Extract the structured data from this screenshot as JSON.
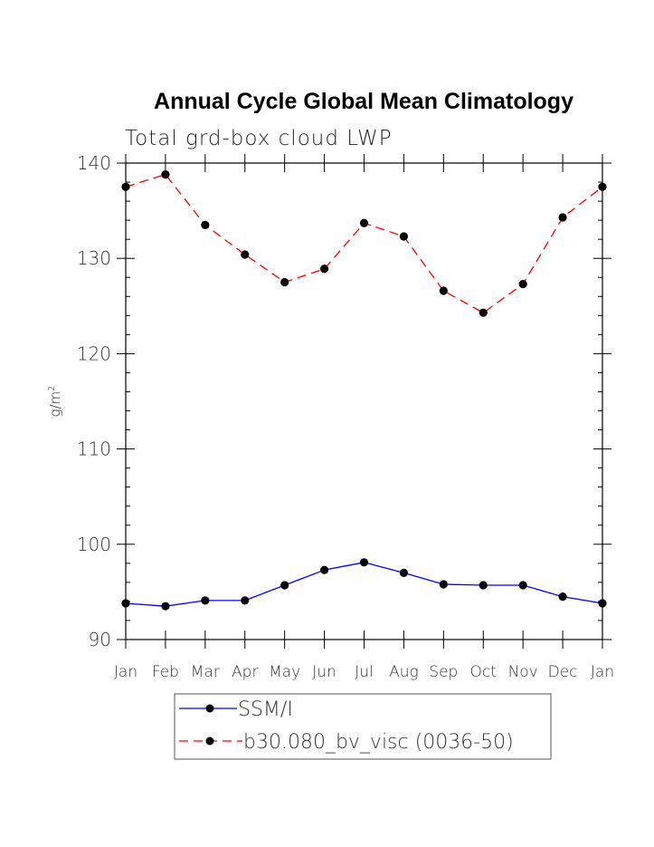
{
  "chart_data": {
    "type": "line",
    "title": "Annual Cycle Global Mean Climatology",
    "subtitle": "Total grd-box cloud LWP",
    "xlabel": "",
    "ylabel": "g/m",
    "ylabel_sup": "2",
    "ylim": [
      90,
      140
    ],
    "yticks": [
      90,
      100,
      110,
      120,
      130,
      140
    ],
    "categories": [
      "Jan",
      "Feb",
      "Mar",
      "Apr",
      "May",
      "Jun",
      "Jul",
      "Aug",
      "Sep",
      "Oct",
      "Nov",
      "Dec",
      "Jan"
    ],
    "series": [
      {
        "name": "SSM/I",
        "color": "#0000ff",
        "dash": "solid",
        "values": [
          93.8,
          93.5,
          94.1,
          94.1,
          95.7,
          97.3,
          98.1,
          97.0,
          95.8,
          95.7,
          95.7,
          94.5,
          93.8
        ]
      },
      {
        "name": "b30.080_bv_visc (0036-50)",
        "color": "#ff0000",
        "dash": "dashed",
        "values": [
          137.5,
          138.8,
          133.5,
          130.4,
          127.5,
          128.9,
          133.7,
          132.3,
          126.6,
          124.3,
          127.3,
          134.3,
          137.5
        ]
      }
    ],
    "legend_position": "bottom-center"
  }
}
